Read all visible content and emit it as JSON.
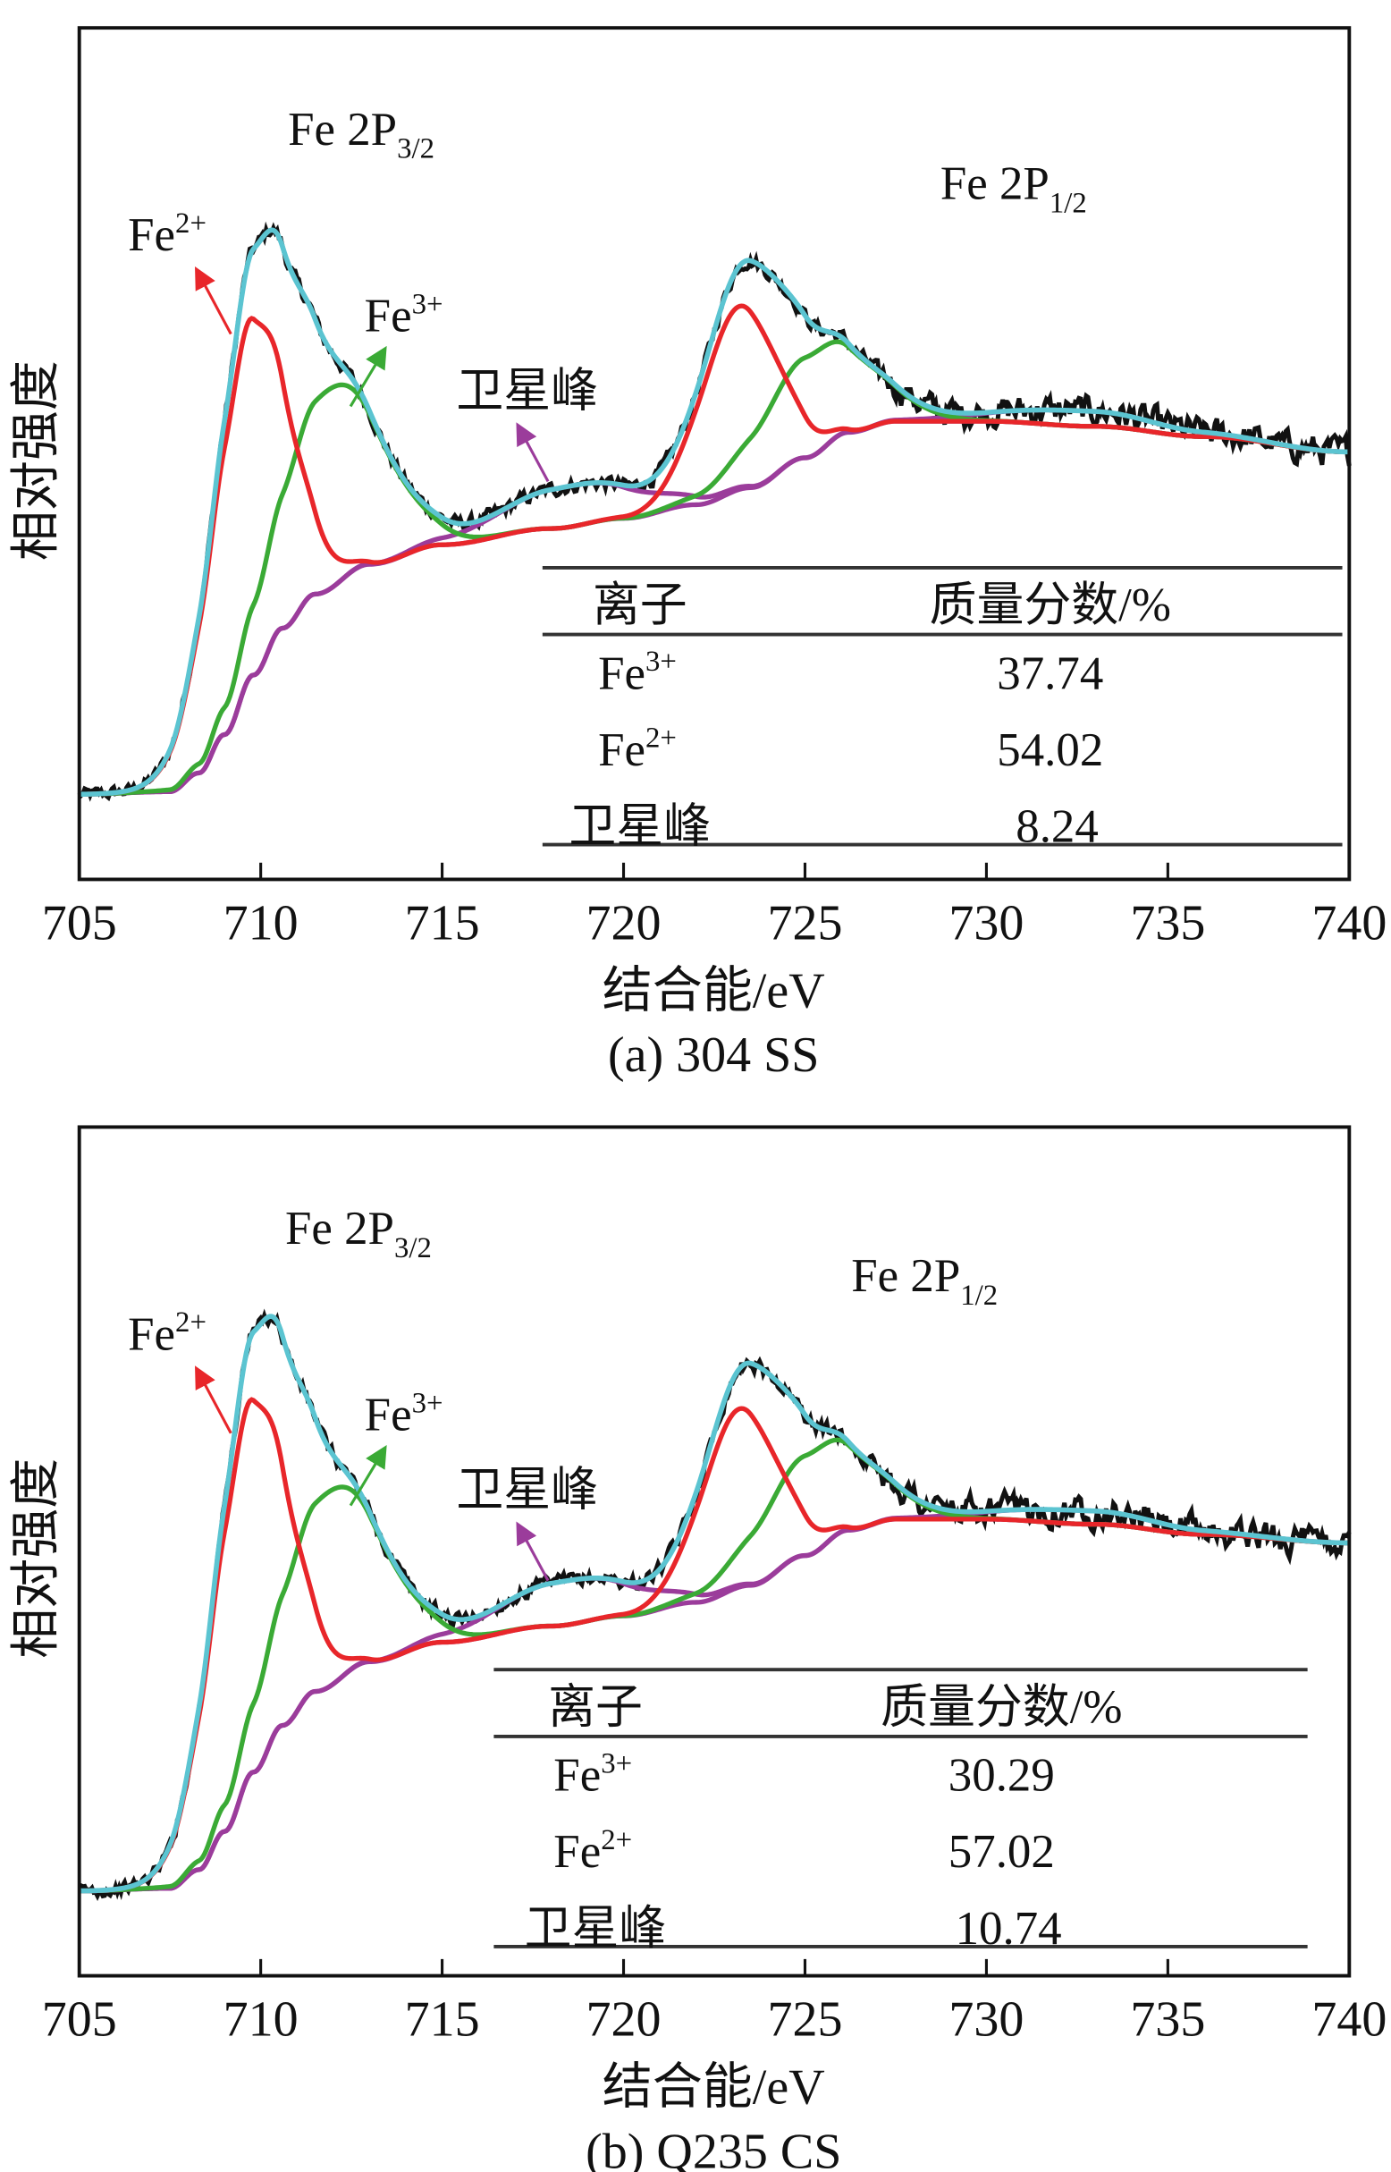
{
  "chart_data": [
    {
      "type": "line",
      "caption": "(a) 304 SS",
      "xlabel": "结合能/eV",
      "ylabel": "相对强度",
      "xlim": [
        705,
        740
      ],
      "xticks": [
        "705",
        "710",
        "715",
        "720",
        "725",
        "730",
        "735",
        "740"
      ],
      "ylim": [
        0,
        100
      ],
      "annotations": {
        "p32": {
          "main": "Fe 2P",
          "sub": "3/2"
        },
        "p12": {
          "main": "Fe 2P",
          "sub": "1/2"
        },
        "fe2": {
          "main": "Fe",
          "sup": "2+"
        },
        "fe3": {
          "main": "Fe",
          "sup": "3+"
        },
        "sat": "卫星峰"
      },
      "table": {
        "headers": [
          "离子",
          "质量分数/%"
        ],
        "rows": [
          {
            "ion": "Fe",
            "sup": "3+",
            "value": "37.74"
          },
          {
            "ion": "Fe",
            "sup": "2+",
            "value": "54.02"
          },
          {
            "ion": "卫星峰",
            "sup": "",
            "value": "8.24"
          }
        ]
      },
      "background": [
        [
          705,
          10
        ],
        [
          707.5,
          10.3
        ],
        [
          708.3,
          12.5
        ],
        [
          709,
          17
        ],
        [
          709.8,
          24
        ],
        [
          710.6,
          29.5
        ],
        [
          711.5,
          33.5
        ],
        [
          713,
          37
        ],
        [
          715,
          39.3
        ],
        [
          718,
          41.2
        ],
        [
          720,
          42.4
        ],
        [
          722,
          44
        ],
        [
          723.5,
          46
        ],
        [
          725,
          49.5
        ],
        [
          726.2,
          52.5
        ],
        [
          727.5,
          53.8
        ],
        [
          730,
          53.8
        ],
        [
          733,
          53.2
        ],
        [
          736,
          52
        ],
        [
          740,
          50.2
        ]
      ],
      "peaks": [
        {
          "name": "Fe2+",
          "series": "red",
          "center": 709.7,
          "height": 42,
          "sigma": 1.05
        },
        {
          "name": "Fe2+",
          "series": "red",
          "center": 723.2,
          "height": 21.5,
          "sigma": 1.05
        },
        {
          "name": "Fe3+",
          "series": "green",
          "center": 711.9,
          "height": 23.5,
          "sigma": 1.45
        },
        {
          "name": "Fe3+",
          "series": "green",
          "center": 725.3,
          "height": 12,
          "sigma": 1.5
        },
        {
          "name": "卫星峰",
          "series": "purple",
          "center": 718.6,
          "height": 4.8,
          "sigma": 1.9
        },
        {
          "name": "卫星峰",
          "series": "purple",
          "center": 732.5,
          "height": 1.8,
          "sigma": 2.2
        }
      ],
      "colors": {
        "red": "#e8262a",
        "green": "#3aaa35",
        "purple": "#9b3c9b",
        "envelope": "#5bc4d1",
        "raw": "#111111"
      }
    },
    {
      "type": "line",
      "caption": "(b) Q235 CS",
      "xlabel": "结合能/eV",
      "ylabel": "相对强度",
      "xlim": [
        705,
        740
      ],
      "xticks": [
        "705",
        "710",
        "715",
        "720",
        "725",
        "730",
        "735",
        "740"
      ],
      "ylim": [
        0,
        100
      ],
      "annotations": {
        "p32": {
          "main": "Fe 2P",
          "sub": "3/2"
        },
        "p12": {
          "main": "Fe 2P",
          "sub": "1/2"
        },
        "fe2": {
          "main": "Fe",
          "sup": "2+"
        },
        "fe3": {
          "main": "Fe",
          "sup": "3+"
        },
        "sat": "卫星峰"
      },
      "table": {
        "headers": [
          "离子",
          "质量分数/%"
        ],
        "rows": [
          {
            "ion": "Fe",
            "sup": "3+",
            "value": "30.29"
          },
          {
            "ion": "Fe",
            "sup": "2+",
            "value": "57.02"
          },
          {
            "ion": "卫星峰",
            "sup": "",
            "value": "10.74"
          }
        ]
      },
      "background": [
        [
          705,
          10
        ],
        [
          707.5,
          10.3
        ],
        [
          708.3,
          12.5
        ],
        [
          709,
          17
        ],
        [
          709.8,
          24
        ],
        [
          710.6,
          29.5
        ],
        [
          711.5,
          33.5
        ],
        [
          713,
          37
        ],
        [
          715,
          39.3
        ],
        [
          718,
          41.2
        ],
        [
          720,
          42.4
        ],
        [
          722,
          44
        ],
        [
          723.5,
          46
        ],
        [
          725,
          49.5
        ],
        [
          726.2,
          52.5
        ],
        [
          727.5,
          53.8
        ],
        [
          730,
          53.8
        ],
        [
          733,
          53.2
        ],
        [
          736,
          52
        ],
        [
          740,
          51
        ]
      ],
      "peaks": [
        {
          "name": "Fe2+",
          "series": "red",
          "center": 709.7,
          "height": 44,
          "sigma": 1.05
        },
        {
          "name": "Fe2+",
          "series": "red",
          "center": 723.2,
          "height": 21,
          "sigma": 1.05
        },
        {
          "name": "Fe3+",
          "series": "green",
          "center": 711.9,
          "height": 23,
          "sigma": 1.45
        },
        {
          "name": "Fe3+",
          "series": "green",
          "center": 725.3,
          "height": 12,
          "sigma": 1.5
        },
        {
          "name": "卫星峰",
          "series": "purple",
          "center": 718.5,
          "height": 5.2,
          "sigma": 1.9
        },
        {
          "name": "卫星峰",
          "series": "purple",
          "center": 732.5,
          "height": 1.6,
          "sigma": 2.2
        }
      ],
      "colors": {
        "red": "#e8262a",
        "green": "#3aaa35",
        "purple": "#9b3c9b",
        "envelope": "#5bc4d1",
        "raw": "#111111"
      }
    }
  ]
}
